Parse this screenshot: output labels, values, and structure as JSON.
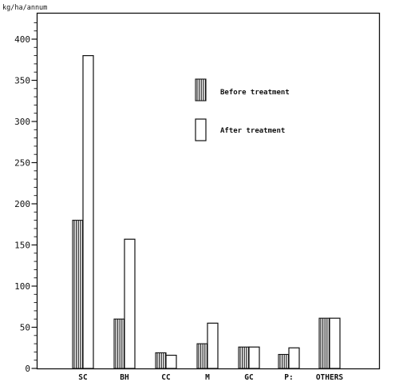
{
  "chart_data": {
    "type": "bar",
    "title": "",
    "ylabel": "",
    "unit_label": "kg/ha/annum",
    "xlabel": "",
    "categories": [
      "SC",
      "BH",
      "CC",
      "M",
      "GC",
      "P:",
      "OTHERS"
    ],
    "series": [
      {
        "name": "Before treatment",
        "values": [
          180,
          60,
          19,
          30,
          26,
          17,
          61
        ],
        "pattern": "hatched"
      },
      {
        "name": "After treatment",
        "values": [
          380,
          157,
          16,
          55,
          26,
          25,
          61
        ],
        "pattern": "white"
      }
    ],
    "ylim": [
      0,
      420
    ],
    "yticks": [
      0,
      50,
      100,
      150,
      200,
      250,
      300,
      350,
      400
    ],
    "minor_tick_step": 10,
    "grid": false,
    "legend_position": "top-right"
  }
}
